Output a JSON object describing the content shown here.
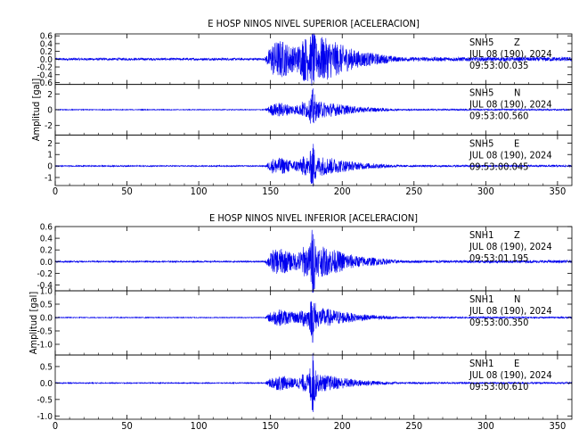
{
  "x_axis": {
    "min": 0,
    "max": 360,
    "ticks": [
      0,
      50,
      100,
      150,
      200,
      250,
      300,
      350
    ],
    "tick_labels": [
      "0",
      "50",
      "100",
      "150",
      "200",
      "250",
      "300",
      "350"
    ]
  },
  "signal_color": "#0000ee",
  "chart_data": [
    {
      "type": "line",
      "title": "E HOSP NINOS NIVEL SUPERIOR [ACELERACION]",
      "ylabel": "Amplitud  [gal]",
      "xlim": [
        0,
        360
      ],
      "traces": [
        {
          "station": "SNH5",
          "component": "Z",
          "date": "JUL 08 (190), 2024",
          "time": "09:53:00.035",
          "ylim": [
            -0.65,
            0.65
          ],
          "yticks": [
            -0.6,
            -0.4,
            -0.2,
            0.0,
            0.2,
            0.4,
            0.6
          ],
          "ytick_labels": [
            "-0.6",
            "-0.4",
            "-0.2",
            "0.0",
            "0.2",
            "0.4",
            "0.6"
          ],
          "noise": 0.03,
          "strong_amp": 0.55,
          "peak_amp": 0.6
        },
        {
          "station": "SNH5",
          "component": "N",
          "date": "JUL 08 (190), 2024",
          "time": "09:53:00.560",
          "ylim": [
            -3.2,
            3.2
          ],
          "yticks": [
            -2,
            0,
            2
          ],
          "ytick_labels": [
            "-2",
            "0",
            "2"
          ],
          "noise": 0.05,
          "strong_amp": 1.0,
          "peak_amp": 2.5
        },
        {
          "station": "SNH5",
          "component": "E",
          "date": "JUL 08 (190), 2024",
          "time": "09:53:00.045",
          "ylim": [
            -1.7,
            2.7
          ],
          "yticks": [
            -1,
            0,
            1,
            2
          ],
          "ytick_labels": [
            "-1",
            "0",
            "1",
            "2"
          ],
          "noise": 0.05,
          "strong_amp": 0.8,
          "peak_amp": 2.0
        }
      ]
    },
    {
      "type": "line",
      "title": "E HOSP NINOS NIVEL INFERIOR [ACELERACION]",
      "ylabel": "Amplitud  [gal]",
      "xlim": [
        0,
        360
      ],
      "traces": [
        {
          "station": "SNH1",
          "component": "Z",
          "date": "JUL 08 (190), 2024",
          "time": "09:53:01.195",
          "ylim": [
            -0.5,
            0.6
          ],
          "yticks": [
            -0.4,
            -0.2,
            0.0,
            0.2,
            0.4,
            0.6
          ],
          "ytick_labels": [
            "-0.4",
            "-0.2",
            "0.0",
            "0.2",
            "0.4",
            "0.6"
          ],
          "noise": 0.012,
          "strong_amp": 0.25,
          "peak_amp": 0.6
        },
        {
          "station": "SNH1",
          "component": "N",
          "date": "JUL 08 (190), 2024",
          "time": "09:53:00.350",
          "ylim": [
            -1.4,
            1.0
          ],
          "yticks": [
            -1.0,
            -0.5,
            0.0,
            0.5,
            1.0
          ],
          "ytick_labels": [
            "-1.0",
            "-0.5",
            "0.0",
            "0.5",
            "1.0"
          ],
          "noise": 0.015,
          "strong_amp": 0.35,
          "peak_amp": 0.9
        },
        {
          "station": "SNH1",
          "component": "E",
          "date": "JUL 08 (190), 2024",
          "time": "09:53:00.610",
          "ylim": [
            -1.1,
            0.85
          ],
          "yticks": [
            -1.0,
            -0.5,
            0.0,
            0.5
          ],
          "ytick_labels": [
            "-1.0",
            "-0.5",
            "0.0",
            "0.5"
          ],
          "noise": 0.015,
          "strong_amp": 0.25,
          "peak_amp": 1.0
        }
      ]
    }
  ]
}
